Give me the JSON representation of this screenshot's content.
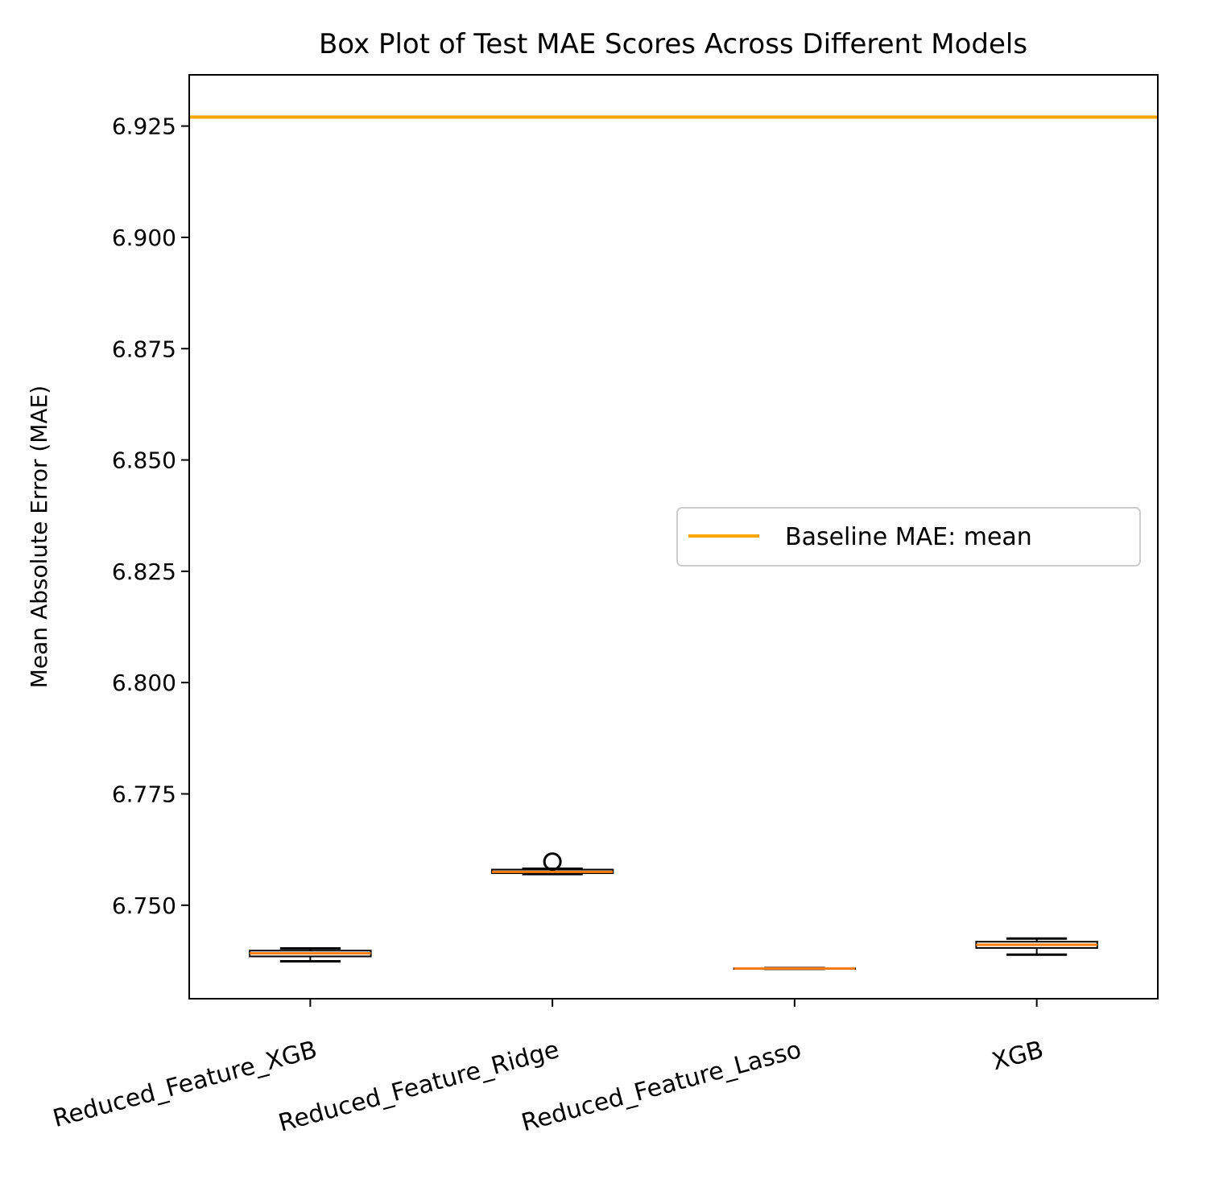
{
  "chart_data": {
    "type": "box",
    "title": "Box Plot of Test MAE Scores Across Different Models",
    "xlabel": "",
    "ylabel": "Mean Absolute Error (MAE)",
    "ylim": [
      6.729,
      6.9365
    ],
    "yticks": [
      "6.750",
      "6.775",
      "6.800",
      "6.825",
      "6.850",
      "6.875",
      "6.900",
      "6.925"
    ],
    "categories": [
      "Reduced_Feature_XGB",
      "Reduced_Feature_Ridge",
      "Reduced_Feature_Lasso",
      "XGB"
    ],
    "boxes": [
      {
        "whisker_low": 6.7374,
        "q1": 6.7385,
        "median": 6.7392,
        "q3": 6.7398,
        "whisker_high": 6.7403,
        "outliers": []
      },
      {
        "whisker_low": 6.757,
        "q1": 6.7572,
        "median": 6.7575,
        "q3": 6.758,
        "whisker_high": 6.7582,
        "outliers": [
          6.7598
        ]
      },
      {
        "whisker_low": 6.7357,
        "q1": 6.7357,
        "median": 6.7358,
        "q3": 6.7358,
        "whisker_high": 6.7359,
        "outliers": []
      },
      {
        "whisker_low": 6.7389,
        "q1": 6.7404,
        "median": 6.7411,
        "q3": 6.7418,
        "whisker_high": 6.7425,
        "outliers": []
      }
    ],
    "baseline": {
      "label": "Baseline MAE: mean",
      "value": 6.927,
      "color": "#ffa500"
    },
    "median_color": "#ff7f0e",
    "legend_position": "center-right",
    "grid": false
  }
}
